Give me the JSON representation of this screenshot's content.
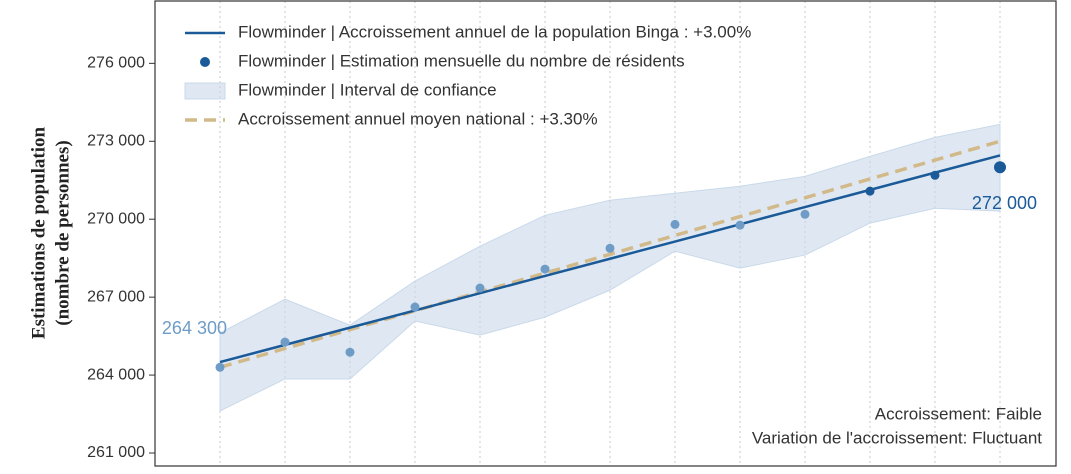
{
  "chart_data": {
    "type": "line",
    "y_label": [
      "Estimations de population",
      "(nombre de personnes)"
    ],
    "categories": [
      null,
      null,
      null,
      null,
      null,
      null,
      null,
      null,
      null,
      null,
      null,
      null,
      null
    ],
    "ylim": [
      260500,
      278400
    ],
    "yticks": [
      {
        "value": 261000,
        "label": "261 000"
      },
      {
        "value": 264000,
        "label": "264 000"
      },
      {
        "value": 267000,
        "label": "267 000"
      },
      {
        "value": 270000,
        "label": "270 000"
      },
      {
        "value": 273000,
        "label": "273 000"
      },
      {
        "value": 276000,
        "label": "276 000"
      }
    ],
    "grid": true,
    "legend": "upper left",
    "series": [
      {
        "name": "Flowminder | Accroissement annuel de la population Binga : +3.00%",
        "kind": "line",
        "color": "#1b5a98",
        "values": [
          264500,
          265163,
          265826,
          266489,
          267152,
          267815,
          268478,
          269141,
          269804,
          270467,
          271130,
          271793,
          272456
        ]
      },
      {
        "name": "Flowminder | Estimation mensuelle du nombre de résidents",
        "kind": "points",
        "color": "#1b5a98",
        "colors": [
          "#6e9cc6",
          "#6e9cc6",
          "#6e9cc6",
          "#6e9cc6",
          "#6e9cc6",
          "#6e9cc6",
          "#6e9cc6",
          "#6e9cc6",
          "#6e9cc6",
          "#6e9cc6",
          "#1b5a98",
          "#1b5a98",
          "#1b5a98"
        ],
        "values": [
          264300,
          265270,
          264880,
          266620,
          267350,
          268080,
          268880,
          269800,
          269770,
          270190,
          271080,
          271690,
          272000
        ],
        "value_labels": [
          "264 300",
          null,
          null,
          null,
          null,
          null,
          null,
          null,
          null,
          null,
          null,
          null,
          "272 000"
        ]
      },
      {
        "name": "Flowminder | Interval de confiance",
        "kind": "band",
        "color": "#c9d9ea",
        "lower": [
          262620,
          263850,
          263850,
          266080,
          265540,
          266230,
          267270,
          268770,
          268120,
          268620,
          269850,
          270420,
          270310
        ],
        "upper": [
          265620,
          266920,
          265920,
          267620,
          268960,
          270150,
          270730,
          271000,
          271270,
          271650,
          272420,
          273150,
          273650
        ]
      },
      {
        "name": "Accroissement annuel moyen national : +3.30%",
        "kind": "dashed",
        "color": "#d2b98a",
        "values": [
          264300,
          265025,
          265750,
          266475,
          267200,
          267925,
          268650,
          269375,
          270100,
          270825,
          271550,
          272275,
          273000
        ]
      }
    ],
    "annotations": [
      "Accroissement: Faible",
      "Variation de l'accroissement: Fluctuant"
    ]
  }
}
